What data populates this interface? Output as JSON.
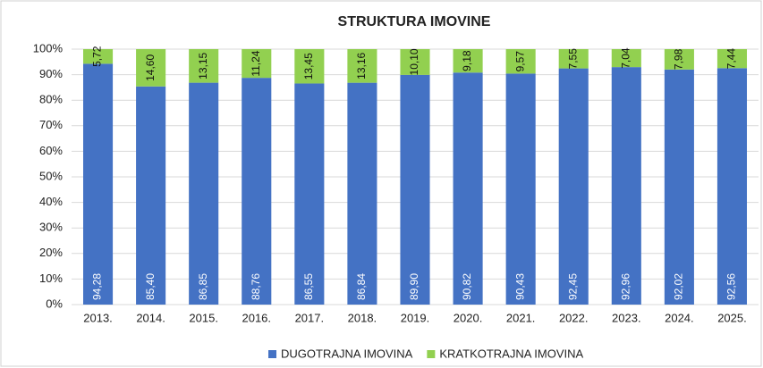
{
  "chart_data": {
    "type": "stacked_bar",
    "title": "STRUKTURA IMOVINE",
    "categories": [
      "2013.",
      "2014.",
      "2015.",
      "2016.",
      "2017.",
      "2018.",
      "2019.",
      "2020.",
      "2021.",
      "2022.",
      "2023.",
      "2024.",
      "2025."
    ],
    "series": [
      {
        "name": "DUGOTRAJNA IMOVINA",
        "color": "#4472c4",
        "values": [
          94.28,
          85.4,
          86.85,
          88.76,
          86.55,
          86.84,
          89.9,
          90.82,
          90.43,
          92.45,
          92.96,
          92.02,
          92.56
        ],
        "value_labels": [
          "94,28",
          "85,40",
          "86,85",
          "88,76",
          "86,55",
          "86,84",
          "89,90",
          "90,82",
          "90,43",
          "92,45",
          "92,96",
          "92,02",
          "92,56"
        ]
      },
      {
        "name": "KRATKOTRAJNA IMOVINA",
        "color": "#92d050",
        "values": [
          5.72,
          14.6,
          13.15,
          11.24,
          13.45,
          13.16,
          10.1,
          9.18,
          9.57,
          7.55,
          7.04,
          7.98,
          7.44
        ],
        "value_labels": [
          "5,72",
          "14,60",
          "13,15",
          "11,24",
          "13,45",
          "13,16",
          "10,10",
          "9,18",
          "9,57",
          "7,55",
          "7,04",
          "7,98",
          "7,44"
        ]
      }
    ],
    "ylim": [
      0,
      100
    ],
    "yticks": [
      {
        "value": 0,
        "label": "0%"
      },
      {
        "value": 10,
        "label": "10%"
      },
      {
        "value": 20,
        "label": "20%"
      },
      {
        "value": 30,
        "label": "30%"
      },
      {
        "value": 40,
        "label": "40%"
      },
      {
        "value": 50,
        "label": "50%"
      },
      {
        "value": 60,
        "label": "60%"
      },
      {
        "value": 70,
        "label": "70%"
      },
      {
        "value": 80,
        "label": "80%"
      },
      {
        "value": 90,
        "label": "90%"
      },
      {
        "value": 100,
        "label": "100%"
      }
    ],
    "grid": true,
    "legend": "bottom"
  }
}
